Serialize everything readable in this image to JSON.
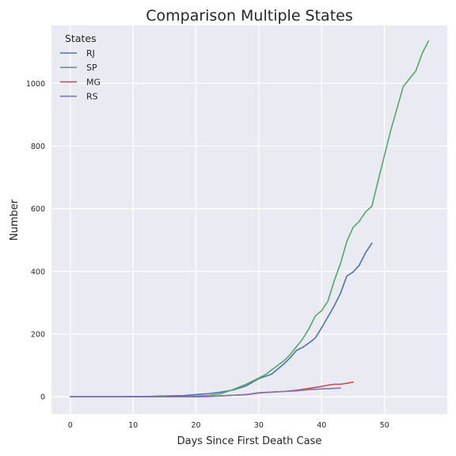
{
  "chart_data": {
    "type": "line",
    "title": "Comparison Multiple States",
    "xlabel": "Days Since First Death Case",
    "ylabel": "Number",
    "xlim": [
      -3,
      60
    ],
    "ylim": [
      -55,
      1185
    ],
    "xticks": [
      0,
      10,
      20,
      30,
      40,
      50
    ],
    "yticks": [
      0,
      200,
      400,
      600,
      800,
      1000
    ],
    "grid": true,
    "legend": {
      "title": "States",
      "placement": "top-left"
    },
    "series": [
      {
        "name": "RJ",
        "color": "#4C72B0",
        "x": [
          0,
          2,
          4,
          6,
          8,
          10,
          12,
          14,
          16,
          18,
          20,
          22,
          24,
          26,
          28,
          30,
          32,
          34,
          35,
          36,
          37,
          38,
          39,
          40,
          41,
          42,
          43,
          44,
          45,
          46,
          47,
          48
        ],
        "y": [
          0,
          0,
          0,
          0,
          0,
          1,
          1,
          2,
          3,
          4,
          7,
          10,
          15,
          22,
          35,
          58,
          72,
          105,
          125,
          148,
          158,
          172,
          188,
          220,
          255,
          290,
          330,
          385,
          398,
          420,
          460,
          490
        ]
      },
      {
        "name": "SP",
        "color": "#55A868",
        "x": [
          0,
          2,
          4,
          6,
          8,
          10,
          12,
          14,
          16,
          18,
          20,
          22,
          24,
          26,
          28,
          30,
          31,
          32,
          33,
          34,
          35,
          36,
          37,
          38,
          39,
          40,
          41,
          42,
          43,
          44,
          45,
          46,
          47,
          48,
          49,
          50,
          51,
          52,
          53,
          54,
          55,
          56,
          57
        ],
        "y": [
          0,
          0,
          0,
          0,
          0,
          0,
          0,
          0,
          0,
          1,
          2,
          4,
          10,
          24,
          40,
          60,
          70,
          85,
          100,
          115,
          135,
          160,
          185,
          218,
          258,
          275,
          305,
          370,
          425,
          495,
          540,
          560,
          590,
          608,
          690,
          770,
          850,
          920,
          990,
          1015,
          1040,
          1095,
          1135
        ]
      },
      {
        "name": "MG",
        "color": "#C44E52",
        "x": [
          0,
          4,
          8,
          12,
          16,
          18,
          20,
          22,
          24,
          26,
          28,
          30,
          32,
          34,
          36,
          38,
          40,
          41,
          42,
          43,
          44,
          45
        ],
        "y": [
          0,
          0,
          0,
          0,
          0,
          0,
          0,
          1,
          3,
          5,
          7,
          12,
          15,
          17,
          21,
          27,
          33,
          37,
          40,
          40,
          43,
          47
        ]
      },
      {
        "name": "RS",
        "color": "#8172B2",
        "x": [
          0,
          4,
          8,
          12,
          16,
          18,
          20,
          22,
          24,
          26,
          28,
          30,
          32,
          34,
          36,
          38,
          40,
          41,
          42,
          43
        ],
        "y": [
          0,
          0,
          0,
          0,
          0,
          0,
          0,
          1,
          3,
          5,
          7,
          13,
          15,
          17,
          19,
          23,
          25,
          26,
          27,
          28
        ]
      }
    ]
  }
}
